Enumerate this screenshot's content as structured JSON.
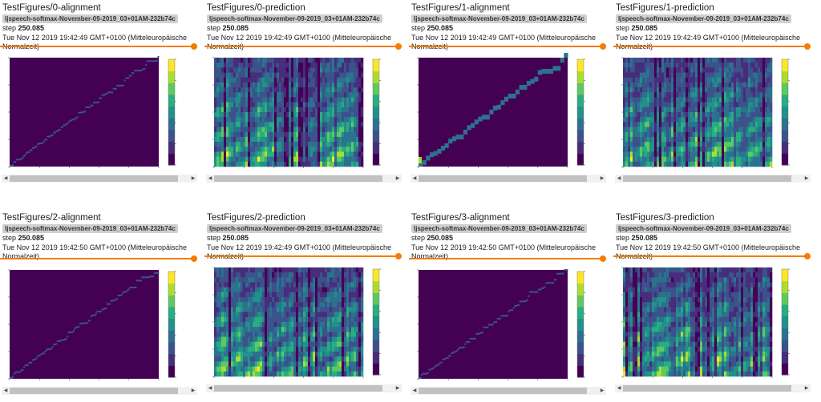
{
  "cards": [
    {
      "title": "TestFigures/0-alignment",
      "run": "ljspeech-softmax-November-09-2019_03+01AM-232b74c",
      "step_label": "step",
      "step_value": "250.085",
      "timestamp": "Tue Nov 12 2019 19:42:49 GMT+0100 (Mitteleuropäische Normalzeit)",
      "kind": "alignment",
      "seed": 11
    },
    {
      "title": "TestFigures/0-prediction",
      "run": "ljspeech-softmax-November-09-2019_03+01AM-232b74c",
      "step_label": "step",
      "step_value": "250.085",
      "timestamp": "Tue Nov 12 2019 19:42:49 GMT+0100 (Mitteleuropäische Normalzeit)",
      "kind": "prediction",
      "seed": 21
    },
    {
      "title": "TestFigures/1-alignment",
      "run": "ljspeech-softmax-November-09-2019_03+01AM-232b74c",
      "step_label": "step",
      "step_value": "250.085",
      "timestamp": "Tue Nov 12 2019 19:42:49 GMT+0100 (Mitteleuropäische Normalzeit)",
      "kind": "alignment-coarse",
      "seed": 31
    },
    {
      "title": "TestFigures/1-prediction",
      "run": "ljspeech-softmax-November-09-2019_03+01AM-232b74c",
      "step_label": "step",
      "step_value": "250.085",
      "timestamp": "Tue Nov 12 2019 19:42:49 GMT+0100 (Mitteleuropäische Normalzeit)",
      "kind": "prediction",
      "seed": 41
    },
    {
      "title": "TestFigures/2-alignment",
      "run": "ljspeech-softmax-November-09-2019_03+01AM-232b74c",
      "step_label": "step",
      "step_value": "250.085",
      "timestamp": "Tue Nov 12 2019 19:42:50 GMT+0100 (Mitteleuropäische Normalzeit)",
      "kind": "alignment",
      "seed": 51
    },
    {
      "title": "TestFigures/2-prediction",
      "run": "ljspeech-softmax-November-09-2019_03+01AM-232b74c",
      "step_label": "step",
      "step_value": "250.085",
      "timestamp": "Tue Nov 12 2019 19:42:49 GMT+0100 (Mitteleuropäische Normalzeit)",
      "kind": "prediction",
      "seed": 61
    },
    {
      "title": "TestFigures/3-alignment",
      "run": "ljspeech-softmax-November-09-2019_03+01AM-232b74c",
      "step_label": "step",
      "step_value": "250.085",
      "timestamp": "Tue Nov 12 2019 19:42:50 GMT+0100 (Mitteleuropäische Normalzeit)",
      "kind": "alignment",
      "seed": 71
    },
    {
      "title": "TestFigures/3-prediction",
      "run": "ljspeech-softmax-November-09-2019_03+01AM-232b74c",
      "step_label": "step",
      "step_value": "250.085",
      "timestamp": "Tue Nov 12 2019 19:42:50 GMT+0100 (Mitteleuropäische Normalzeit)",
      "kind": "prediction",
      "seed": 81
    }
  ],
  "colors": {
    "accent": "#f57c00",
    "viridis": [
      "#440154",
      "#472d7b",
      "#3b528b",
      "#2c728e",
      "#21918c",
      "#28ae80",
      "#5ec962",
      "#addc30",
      "#fde725"
    ]
  },
  "scroll_left_icon": "◀",
  "scroll_right_icon": "▶"
}
